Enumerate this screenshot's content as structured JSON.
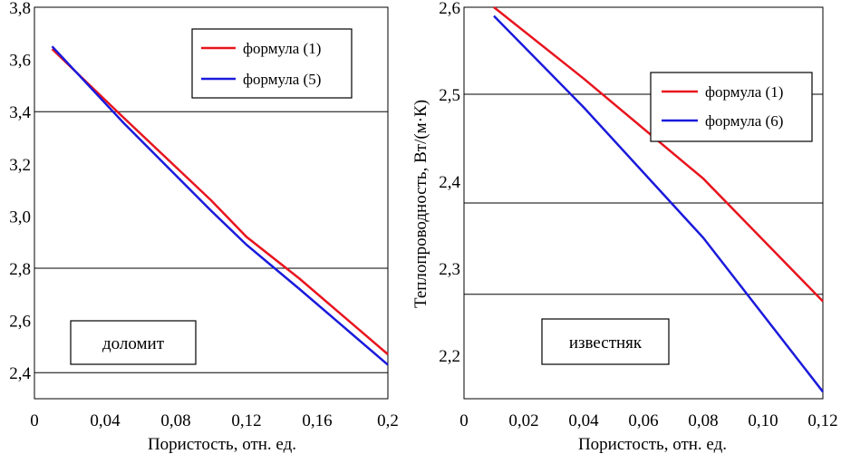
{
  "chart_data": [
    {
      "type": "line",
      "title": "",
      "xlabel": "Пористость, отн. ед.",
      "ylabel": "",
      "xlim": [
        0,
        0.2
      ],
      "ylim": [
        2.3,
        3.8
      ],
      "x_ticks": [
        0,
        0.04,
        0.08,
        0.12,
        0.16,
        0.2
      ],
      "x_tick_labels": [
        "0",
        "0,04",
        "0,08",
        "0,12",
        "0,16",
        "0,2"
      ],
      "y_ticks": [
        2.4,
        2.6,
        2.8,
        3.0,
        3.2,
        3.4,
        3.6,
        3.8
      ],
      "y_tick_labels": [
        "2,4",
        "2,6",
        "2,8",
        "3,0",
        "3,2",
        "3,4",
        "3,6",
        "3,8"
      ],
      "gridlines_y": [
        2.4,
        2.8,
        3.4
      ],
      "annotation": "доломит",
      "legend_position": "top-right",
      "series": [
        {
          "name": "формула (1)",
          "color": "#e8141e",
          "x": [
            0.01,
            0.05,
            0.1,
            0.12,
            0.15,
            0.2
          ],
          "values": [
            3.64,
            3.38,
            3.06,
            2.92,
            2.76,
            2.47
          ]
        },
        {
          "name": "формула (5)",
          "color": "#1a1adc",
          "x": [
            0.01,
            0.05,
            0.1,
            0.12,
            0.15,
            0.2
          ],
          "values": [
            3.65,
            3.36,
            3.02,
            2.89,
            2.72,
            2.43
          ]
        }
      ]
    },
    {
      "type": "line",
      "title": "",
      "xlabel": "Пористость, отн. ед.",
      "ylabel": "Теплопроводность, Вт/(м·К)",
      "xlim": [
        0,
        0.12
      ],
      "ylim": [
        2.15,
        2.6
      ],
      "x_ticks": [
        0,
        0.02,
        0.04,
        0.06,
        0.08,
        0.1,
        0.12
      ],
      "x_tick_labels": [
        "0",
        "0,02",
        "0,04",
        "0,06",
        "0,08",
        "0,10",
        "0,12"
      ],
      "y_ticks": [
        2.2,
        2.3,
        2.4,
        2.5,
        2.6
      ],
      "y_tick_labels": [
        "2,2",
        "2,3",
        "2,4",
        "2,5",
        "2,6"
      ],
      "gridlines_y": [
        2.5,
        2.375,
        2.27
      ],
      "annotation": "известняк",
      "legend_position": "top-right",
      "series": [
        {
          "name": "формула (1)",
          "color": "#e8141e",
          "x": [
            0.01,
            0.04,
            0.08,
            0.12
          ],
          "values": [
            2.6,
            2.518,
            2.403,
            2.262
          ]
        },
        {
          "name": "формула (6)",
          "color": "#1a1adc",
          "x": [
            0.01,
            0.04,
            0.08,
            0.12
          ],
          "values": [
            2.59,
            2.485,
            2.335,
            2.158
          ]
        }
      ]
    }
  ]
}
